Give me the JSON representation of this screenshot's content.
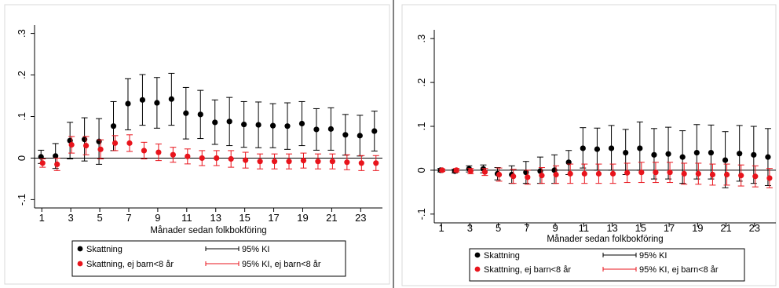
{
  "chart_data": [
    {
      "type": "scatter",
      "title": "",
      "xlabel": "Månader sedan folkbokföring",
      "ylabel": "",
      "xlim": [
        0.5,
        24.5
      ],
      "ylim": [
        -0.12,
        0.32
      ],
      "x_ticks": [
        1,
        3,
        5,
        7,
        9,
        11,
        13,
        15,
        17,
        19,
        21,
        23
      ],
      "y_ticks": [
        -0.1,
        0,
        0.1,
        0.2,
        0.3
      ],
      "y_tick_labels": [
        "-.1",
        "0",
        ".1",
        ".2",
        ".3"
      ],
      "x": [
        1,
        2,
        3,
        4,
        5,
        6,
        7,
        8,
        9,
        10,
        11,
        12,
        13,
        14,
        15,
        16,
        17,
        18,
        19,
        20,
        21,
        22,
        23,
        24
      ],
      "reference_line": 0,
      "grid": false,
      "legend_position": "bottom",
      "legend": {
        "entries": [
          {
            "label": "Skattning",
            "marker": "dot",
            "color": "#000000"
          },
          {
            "label": "95% KI",
            "marker": "errorbar",
            "color": "#000000"
          },
          {
            "label": "Skattning, ej barn<8 år",
            "marker": "dot",
            "color": "#e8141c"
          },
          {
            "label": "95% KI, ej barn<8 år",
            "marker": "errorbar",
            "color": "#e8141c"
          }
        ]
      },
      "series": [
        {
          "name": "Skattning",
          "color": "#000000",
          "values": [
            0.003,
            0.005,
            0.042,
            0.045,
            0.04,
            0.077,
            0.131,
            0.14,
            0.133,
            0.142,
            0.108,
            0.105,
            0.086,
            0.088,
            0.081,
            0.08,
            0.078,
            0.077,
            0.083,
            0.069,
            0.07,
            0.056,
            0.054,
            0.065
          ],
          "lower": [
            -0.013,
            -0.025,
            -0.002,
            -0.007,
            -0.015,
            0.018,
            0.068,
            0.079,
            0.072,
            0.079,
            0.046,
            0.047,
            0.033,
            0.03,
            0.026,
            0.025,
            0.025,
            0.021,
            0.03,
            0.019,
            0.019,
            0.007,
            0.005,
            0.017
          ],
          "upper": [
            0.019,
            0.035,
            0.086,
            0.097,
            0.095,
            0.136,
            0.191,
            0.201,
            0.194,
            0.204,
            0.17,
            0.163,
            0.14,
            0.146,
            0.136,
            0.135,
            0.131,
            0.133,
            0.136,
            0.119,
            0.121,
            0.105,
            0.103,
            0.113
          ]
        },
        {
          "name": "Skattning, ej barn<8 år",
          "color": "#e8141c",
          "values": [
            -0.012,
            -0.015,
            0.032,
            0.03,
            0.021,
            0.036,
            0.036,
            0.018,
            0.014,
            0.008,
            0.004,
            0.0,
            0.0,
            -0.002,
            -0.005,
            -0.008,
            -0.008,
            -0.008,
            -0.006,
            -0.008,
            -0.008,
            -0.01,
            -0.012,
            -0.012
          ],
          "lower": [
            -0.022,
            -0.03,
            0.012,
            0.008,
            -0.002,
            0.018,
            0.016,
            -0.002,
            -0.006,
            -0.01,
            -0.014,
            -0.018,
            -0.018,
            -0.022,
            -0.024,
            -0.026,
            -0.026,
            -0.026,
            -0.024,
            -0.026,
            -0.026,
            -0.028,
            -0.03,
            -0.03
          ],
          "upper": [
            -0.002,
            0.0,
            0.052,
            0.052,
            0.044,
            0.054,
            0.056,
            0.038,
            0.034,
            0.026,
            0.022,
            0.018,
            0.018,
            0.018,
            0.014,
            0.01,
            0.01,
            0.01,
            0.012,
            0.01,
            0.01,
            0.008,
            0.006,
            0.006
          ]
        }
      ]
    },
    {
      "type": "scatter",
      "title": "",
      "xlabel": "Månader sedan folkbokföring",
      "ylabel": "",
      "xlim": [
        0.5,
        24.5
      ],
      "ylim": [
        -0.12,
        0.32
      ],
      "x_ticks": [
        1,
        3,
        5,
        7,
        9,
        11,
        13,
        15,
        17,
        19,
        21,
        23
      ],
      "y_ticks": [
        -0.1,
        0,
        0.1,
        0.2,
        0.3
      ],
      "y_tick_labels": [
        "-.1",
        "0",
        ".1",
        ".2",
        ".3"
      ],
      "x": [
        1,
        2,
        3,
        4,
        5,
        6,
        7,
        8,
        9,
        10,
        11,
        12,
        13,
        14,
        15,
        16,
        17,
        18,
        19,
        20,
        21,
        22,
        23,
        24
      ],
      "reference_line": 0,
      "grid": false,
      "legend_position": "bottom",
      "legend": {
        "entries": [
          {
            "label": "Skattning",
            "marker": "dot",
            "color": "#000000"
          },
          {
            "label": "95% KI",
            "marker": "errorbar",
            "color": "#000000"
          },
          {
            "label": "Skattning, ej barn<8 år",
            "marker": "dot",
            "color": "#e8141c"
          },
          {
            "label": "95% KI, ej barn<8 år",
            "marker": "errorbar",
            "color": "#e8141c"
          }
        ]
      },
      "series": [
        {
          "name": "Skattning",
          "color": "#000000",
          "values": [
            0.0,
            -0.002,
            0.003,
            0.003,
            -0.008,
            -0.01,
            -0.005,
            -0.002,
            0.0,
            0.018,
            0.05,
            0.048,
            0.05,
            0.04,
            0.05,
            0.035,
            0.037,
            0.03,
            0.04,
            0.04,
            0.023,
            0.038,
            0.035,
            0.03
          ],
          "lower": [
            -0.004,
            -0.006,
            -0.004,
            -0.006,
            -0.022,
            -0.03,
            -0.03,
            -0.03,
            -0.03,
            -0.01,
            0.005,
            0.0,
            0.0,
            -0.01,
            0.0,
            -0.02,
            -0.02,
            -0.03,
            -0.02,
            -0.02,
            -0.04,
            -0.025,
            -0.03,
            -0.035
          ],
          "upper": [
            0.004,
            0.002,
            0.01,
            0.012,
            0.006,
            0.01,
            0.02,
            0.03,
            0.035,
            0.045,
            0.097,
            0.096,
            0.102,
            0.093,
            0.11,
            0.095,
            0.098,
            0.09,
            0.104,
            0.103,
            0.088,
            0.102,
            0.1,
            0.095
          ]
        },
        {
          "name": "Skattning, ej barn<8 år",
          "color": "#e8141c",
          "values": [
            0.0,
            0.0,
            -0.002,
            -0.004,
            -0.01,
            -0.014,
            -0.016,
            -0.012,
            -0.01,
            -0.008,
            -0.008,
            -0.008,
            -0.008,
            -0.006,
            -0.005,
            -0.005,
            -0.005,
            -0.008,
            -0.008,
            -0.01,
            -0.01,
            -0.012,
            -0.014,
            -0.018
          ],
          "lower": [
            -0.003,
            -0.004,
            -0.008,
            -0.012,
            -0.025,
            -0.03,
            -0.032,
            -0.03,
            -0.03,
            -0.03,
            -0.03,
            -0.03,
            -0.03,
            -0.028,
            -0.028,
            -0.028,
            -0.028,
            -0.032,
            -0.032,
            -0.034,
            -0.034,
            -0.036,
            -0.038,
            -0.04
          ],
          "upper": [
            0.003,
            0.004,
            0.004,
            0.004,
            0.005,
            0.002,
            0.0,
            0.006,
            0.01,
            0.014,
            0.014,
            0.014,
            0.014,
            0.016,
            0.018,
            0.018,
            0.018,
            0.016,
            0.016,
            0.014,
            0.014,
            0.012,
            0.01,
            0.004
          ]
        }
      ]
    }
  ]
}
